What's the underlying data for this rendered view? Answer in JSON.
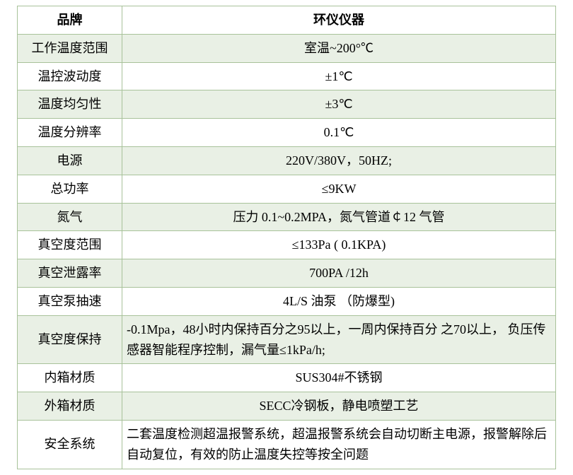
{
  "table": {
    "header": {
      "brand": "品牌",
      "title": "环仪仪器"
    },
    "rows": [
      {
        "label": "工作温度范围",
        "value": "室温~200°℃",
        "shaded": true
      },
      {
        "label": "温控波动度",
        "value": "±1℃",
        "shaded": false
      },
      {
        "label": "温度均匀性",
        "value": "±3℃",
        "shaded": true
      },
      {
        "label": "温度分辨率",
        "value": "0.1℃",
        "shaded": false
      },
      {
        "label": "电源",
        "value": "220V/380V，50HZ;",
        "shaded": true
      },
      {
        "label": "总功率",
        "value": "≤9KW",
        "shaded": false
      },
      {
        "label": "氮气",
        "value": "压力 0.1~0.2MPA，氮气管道￠12 气管",
        "shaded": true
      },
      {
        "label": "真空度范围",
        "value": "≤133Pa ( 0.1KPA)",
        "shaded": false
      },
      {
        "label": "真空泄露率",
        "value": "700PA /12h",
        "shaded": true
      },
      {
        "label": "真空泵抽速",
        "value": "4L/S 油泵 （防爆型)",
        "shaded": false
      },
      {
        "label": "真空度保持",
        "value": "-0.1Mpa，48小时内保持百分之95以上，一周内保持百分 之70以上， 负压传感器智能程序控制，漏气量≤1kPa/h;",
        "shaded": true,
        "left": true
      },
      {
        "label": "内箱材质",
        "value": "SUS304#不锈钢",
        "shaded": false
      },
      {
        "label": "外箱材质",
        "value": "SECC冷钢板，静电喷塑工艺",
        "shaded": true
      },
      {
        "label": "安全系统",
        "value": "二套温度检测超温报警系统，超温报警系统会自动切断主电源，报警解除后自动复位，有效的防止温度失控等按全问题",
        "shaded": false,
        "left": true
      }
    ]
  },
  "style": {
    "border_color": "#a8c29a",
    "shade_color": "#e9f0e5",
    "background": "#ffffff",
    "font_size": 18,
    "label_col_width": 148
  }
}
